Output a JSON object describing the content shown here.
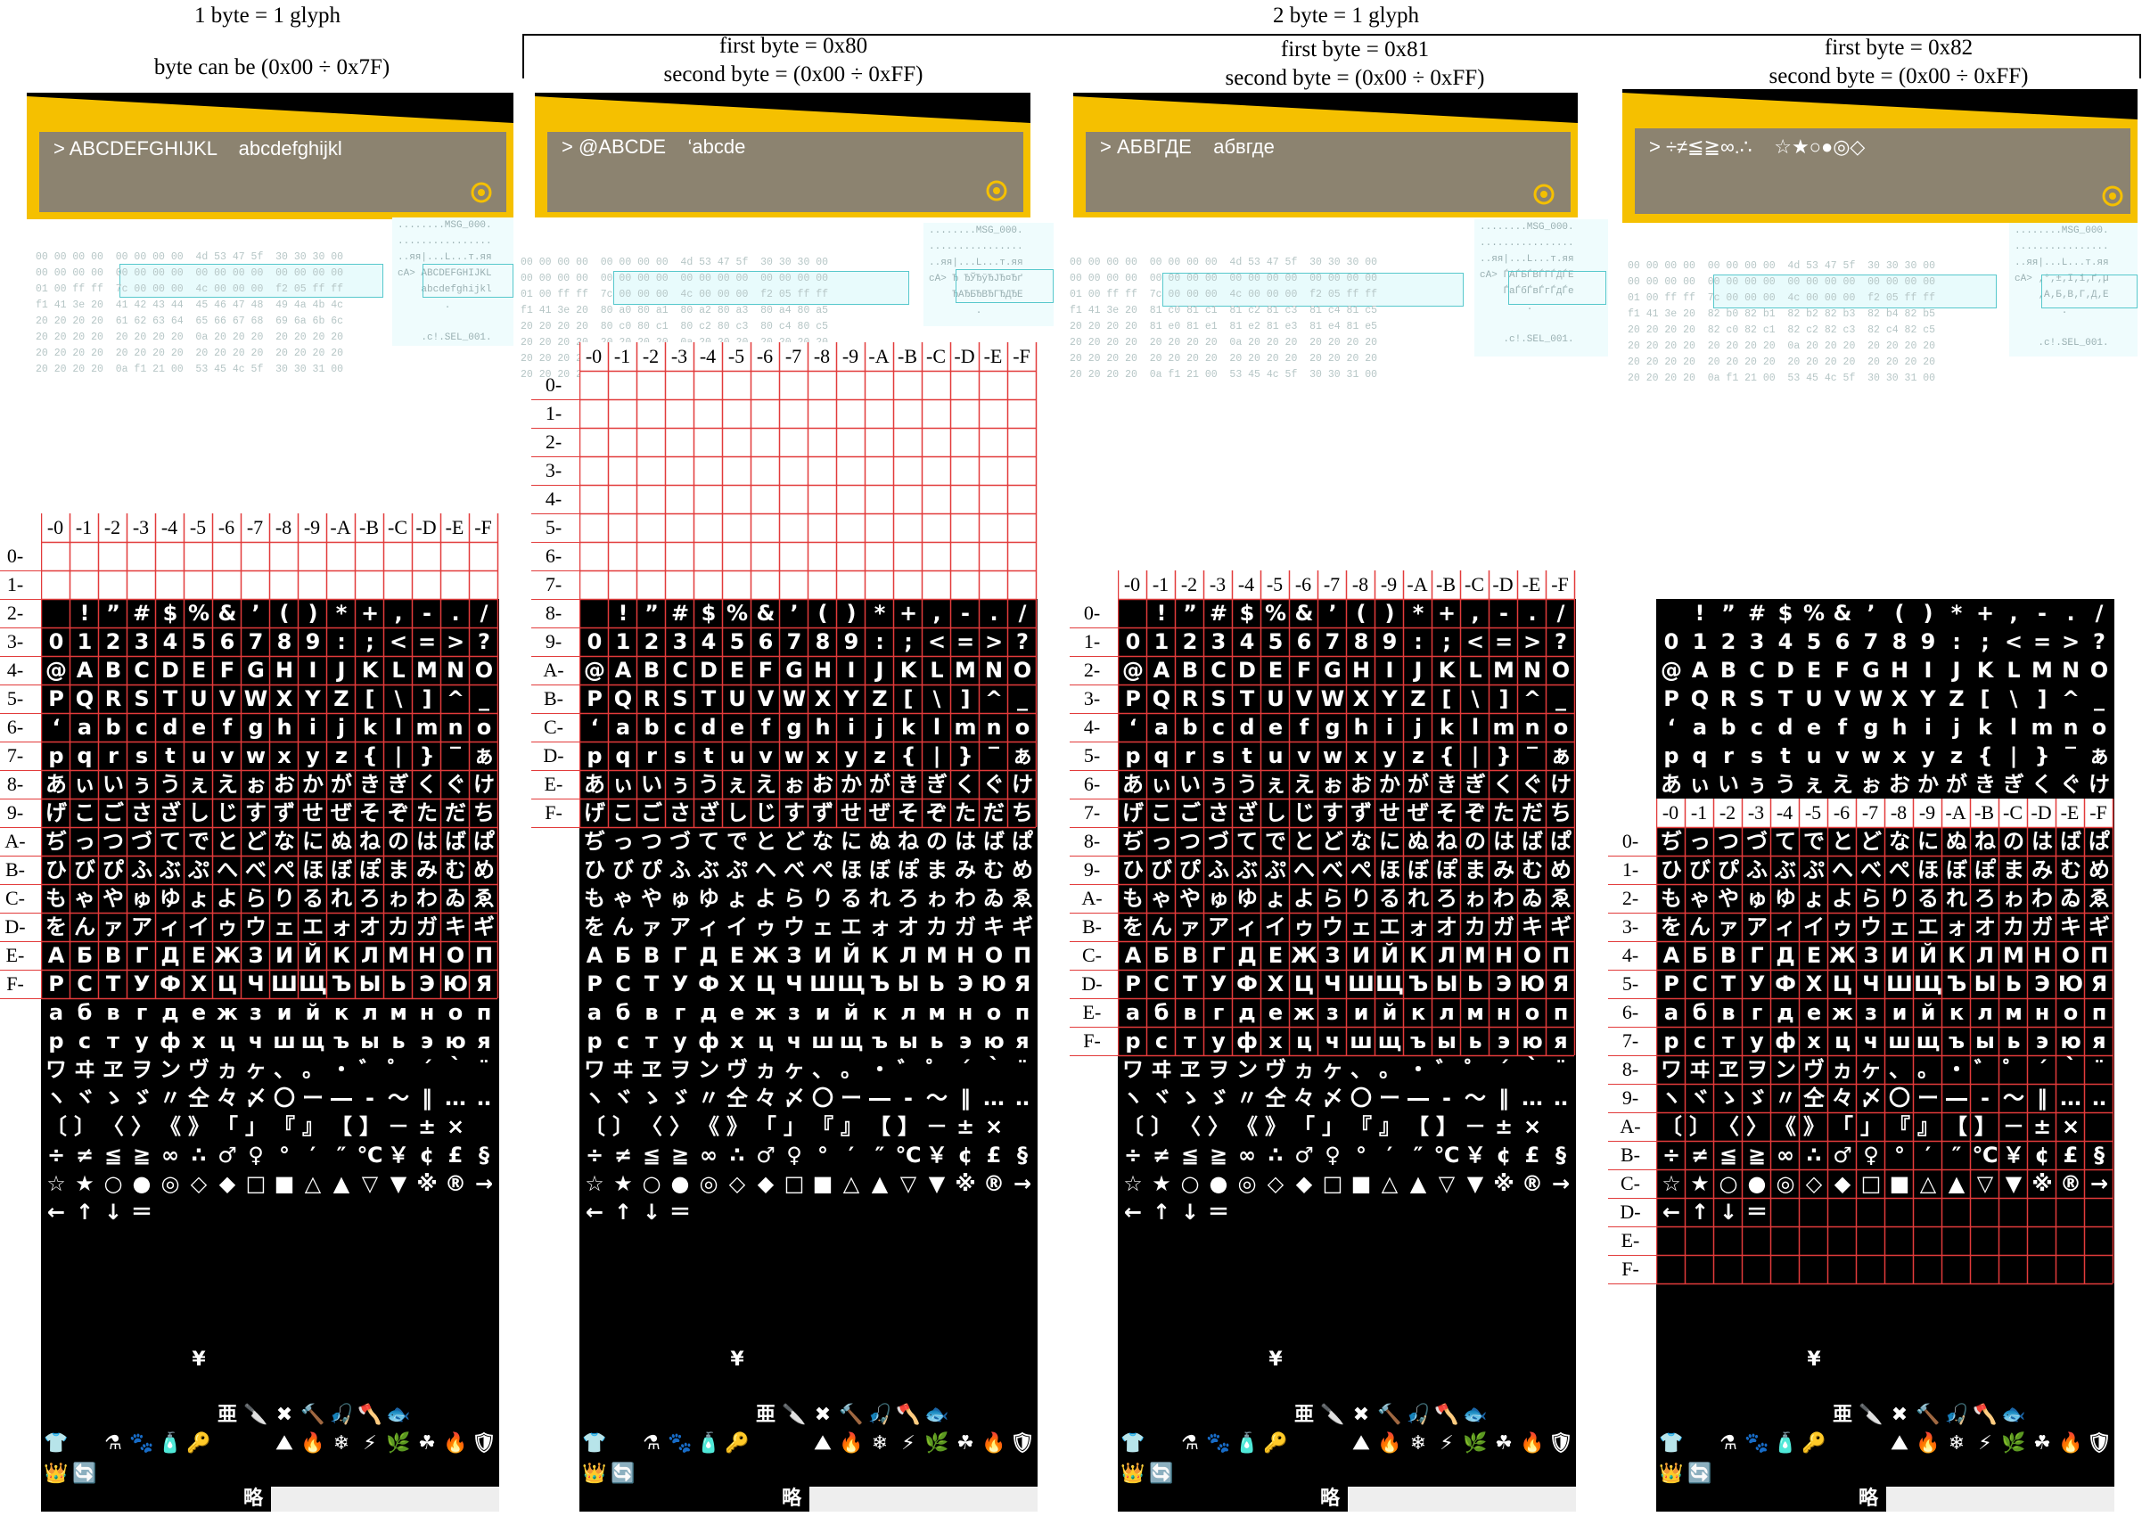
{
  "headers": {
    "one_byte_title": "1 byte = 1 glyph",
    "one_byte_range": "byte can be (0x00 ÷ 0x7F)",
    "two_byte_title": "2 byte = 1 glyph",
    "group_80_line1": "first byte = 0x80",
    "group_80_line2": "second byte = (0x00 ÷ 0xFF)",
    "group_81_line1": "first byte = 0x81",
    "group_81_line2": "second byte = (0x00 ÷ 0xFF)",
    "group_82_line1": "first byte = 0x82",
    "group_82_line2": "second byte = (0x00 ÷ 0xFF)"
  },
  "dialogs": [
    {
      "text": "> ABCDEFGHIJKL    abcdefghijkl"
    },
    {
      "text": "> @ABCDE    ‘abcde"
    },
    {
      "text": "> АБВГДЕ    абвгде"
    },
    {
      "text": "> ÷≠≦≧∞.∴    ☆★○●◎◇"
    }
  ],
  "hex_panels": [
    {
      "lines": [
        "00 00 00 00  00 00 00 00  4d 53 47 5f  30 30 30 00",
        "00 00 00 00  00 00 00 00  00 00 00 00  00 00 00 00",
        "01 00 ff ff  7c 00 00 00  4c 00 00 00  f2 05 ff ff",
        "f1 41 3e 20  41 42 43 44  45 46 47 48  49 4a 4b 4c",
        "20 20 20 20  61 62 63 64  65 66 67 68  69 6a 6b 6c",
        "20 20 20 20  20 20 20 20  0a 20 20 20  20 20 20 20",
        "20 20 20 20  20 20 20 20  20 20 20 20  20 20 20 20",
        "20 20 20 20  0a f1 21 00  53 45 4c 5f  30 30 31 00"
      ],
      "ascii": [
        "........MSG_000.",
        "................",
        "..яя|...L...т.яя",
        "сA> ABCDEFGHIJKL",
        "    abcdefghijkl",
        "        .       ",
        "                ",
        "    .c!.SEL_001."
      ]
    },
    {
      "lines": [
        "00 00 00 00  00 00 00 00  4d 53 47 5f  30 30 30 00",
        "00 00 00 00  00 00 00 00  00 00 00 00  00 00 00 00",
        "01 00 ff ff  7c 00 00 00  4c 00 00 00  f2 05 ff ff",
        "f1 41 3e 20  80 a0 80 a1  80 a2 80 a3  80 a4 80 a5",
        "20 20 20 20  80 c0 80 c1  80 c2 80 c3  80 c4 80 c5",
        "20 20 20 20  20 20 20 20  0a 20 20 20  20 20 20 20",
        "20 20 20 20  20 20 20 20  20 20 20 20  20 20 20 20",
        "20 20 20 20  0a f1 21 00  53 45 4c 5f  30 30 31 00"
      ],
      "ascii": [
        "........MSG_000.",
        "................",
        "..яя|...L...т.яя",
        "сA> Ђ ЂЎЂўЂЈЂ¤Ђґ",
        "    ЂАЂБЂВЂГЂДЂЕ",
        "        .       ",
        "                ",
        "    .c!.SEL_001."
      ]
    },
    {
      "lines": [
        "00 00 00 00  00 00 00 00  4d 53 47 5f  30 30 30 00",
        "00 00 00 00  00 00 00 00  00 00 00 00  00 00 00 00",
        "01 00 ff ff  7c 00 00 00  4c 00 00 00  f2 05 ff ff",
        "f1 41 3e 20  81 c0 81 c1  81 c2 81 c3  81 c4 81 c5",
        "20 20 20 20  81 e0 81 e1  81 e2 81 e3  81 e4 81 e5",
        "20 20 20 20  20 20 20 20  0a 20 20 20  20 20 20 20",
        "20 20 20 20  20 20 20 20  20 20 20 20  20 20 20 20",
        "20 20 20 20  0a f1 21 00  53 45 4c 5f  30 30 31 00"
      ],
      "ascii": [
        "........MSG_000.",
        "................",
        "..яя|...L...т.яя",
        "сA> ЃАЃБЃВЃГЃДЃЕ",
        "    ЃаЃбЃвЃгЃдЃе",
        "        .       ",
        "                ",
        "    .c!.SEL_001."
      ]
    },
    {
      "lines": [
        "00 00 00 00  00 00 00 00  4d 53 47 5f  30 30 30 00",
        "00 00 00 00  00 00 00 00  00 00 00 00  00 00 00 00",
        "01 00 ff ff  7c 00 00 00  4c 00 00 00  f2 05 ff ff",
        "f1 41 3e 20  82 b0 82 b1  82 b2 82 b3  82 b4 82 b5",
        "20 20 20 20  82 c0 82 c1  82 c2 82 c3  82 c4 82 c5",
        "20 20 20 20  20 20 20 20  0a 20 20 20  20 20 20 20",
        "20 20 20 20  20 20 20 20  20 20 20 20  20 20 20 20",
        "20 20 20 20  0a f1 21 00  53 45 4c 5f  30 30 31 00"
      ],
      "ascii": [
        "........MSG_000.",
        "................",
        "..яя|...L...т.яя",
        "сA> ‚°‚±‚І‚і‚ґ‚µ",
        "    ‚А‚Б‚В‚Г‚Д‚Е",
        "        .       ",
        "                ",
        "    .c!.SEL_001."
      ]
    }
  ],
  "col_labels": [
    "-0",
    "-1",
    "-2",
    "-3",
    "-4",
    "-5",
    "-6",
    "-7",
    "-8",
    "-9",
    "-A",
    "-B",
    "-C",
    "-D",
    "-E",
    "-F"
  ],
  "row_labels": [
    "0-",
    "1-",
    "2-",
    "3-",
    "4-",
    "5-",
    "6-",
    "7-",
    "8-",
    "9-",
    "A-",
    "B-",
    "C-",
    "D-",
    "E-",
    "F-"
  ],
  "font_rows": [
    " !”#$%&’()*+,-./",
    "0123456789:;<=>?",
    "@ABCDEFGHIJKLMNO",
    "PQRSTUVWXYZ[\\]^_",
    "‘abcdefghijklmno",
    "pqrstuvwxyz{|}‾ぁ",
    "あぃいぅうぇえぉおかがきぎくぐけ",
    "げこごさざしじすずせぜそぞただち",
    "ぢっつづてでとどなにぬねのはばぱ",
    "ひびぴふぶぷへべぺほぼぽまみむめ",
    "もゃやゅゆょよらりるれろゎわゐゑ",
    "をんァアィイゥウェエォオカガキギ",
    "АБВГДЕЖЗИЙКЛМНОП",
    "РСТУФХЦЧШЩЪЫЬЭЮЯ",
    "абвгдежзийклмноп",
    "рстуфхцчшщъыьэюя",
    "ワヰヱヲンヴヵヶ、。・゛゜´｀¨",
    "ヽヾゝゞ〃仝々〆〇ー―‐～‖…‥“",
    "〔〕〈〉《》「」『』【】－±×",
    "÷≠≦≧∞∴♂♀°′″℃￥¢£§",
    "☆★○●◎◇◆□■△▲▽▼※®→",
    "←↑↓＝"
  ],
  "bottom_rows": [
    {
      "offset": 5,
      "chars": "¥"
    },
    {
      "offset": 6,
      "chars": "亜🔪✖🔨🎣🪓🐟"
    },
    {
      "offset": 0,
      "chars": "👕 ⚗🐾🧴🔑  ⛰🔥❄⚡🌿☘🔥🛡✚"
    },
    {
      "offset": 0,
      "chars": "👑🔄"
    }
  ],
  "footer_glyph": "略",
  "colors": {
    "gold": "#f5c000",
    "dialog_bg": "#8c8370",
    "grid_red": "#e23b3b",
    "hex_box": "#57c8cc"
  }
}
